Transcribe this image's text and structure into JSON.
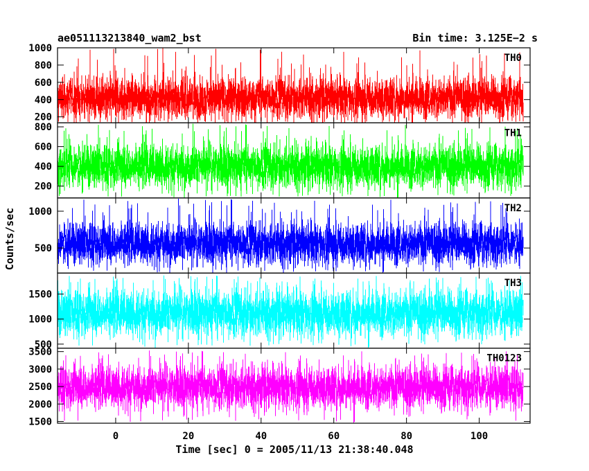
{
  "header": {
    "left_title": "ae051113213840_wam2_bst",
    "right_title": "Bin time: 3.125E−2 s"
  },
  "chart_data": {
    "type": "line",
    "xlabel": "Time [sec] 0 = 2005/11/13 21:38:40.048",
    "ylabel": "Counts/sec",
    "xlim": [
      -16,
      114
    ],
    "x_ticks": [
      0,
      20,
      40,
      60,
      80,
      100
    ],
    "data_x_range": [
      -16,
      112
    ],
    "grid": false,
    "panels": [
      {
        "name": "TH0",
        "color": "#ff0000",
        "ylim": [
          130,
          1000
        ],
        "y_ticks": [
          200,
          400,
          600,
          800,
          1000
        ],
        "typical_range": [
          150,
          720
        ],
        "peak_max": 1000,
        "mean": 420
      },
      {
        "name": "TH1",
        "color": "#00ff00",
        "ylim": [
          80,
          840
        ],
        "y_ticks": [
          200,
          400,
          600,
          800
        ],
        "typical_range": [
          130,
          650
        ],
        "peak_max": 840,
        "mean": 400
      },
      {
        "name": "TH2",
        "color": "#0000ff",
        "ylim": [
          160,
          1180
        ],
        "y_ticks": [
          500,
          1000
        ],
        "typical_range": [
          270,
          950
        ],
        "peak_max": 1180,
        "mean": 560
      },
      {
        "name": "TH3",
        "color": "#00ffff",
        "ylim": [
          420,
          1920
        ],
        "y_ticks": [
          500,
          1000,
          1500
        ],
        "typical_range": [
          600,
          1700
        ],
        "peak_max": 1880,
        "mean": 1120
      },
      {
        "name": "TH0123",
        "color": "#ff00ff",
        "ylim": [
          1450,
          3600
        ],
        "y_ticks": [
          1500,
          2000,
          2500,
          3000,
          3500
        ],
        "typical_range": [
          1700,
          3150
        ],
        "peak_max": 3550,
        "mean": 2480
      }
    ]
  }
}
